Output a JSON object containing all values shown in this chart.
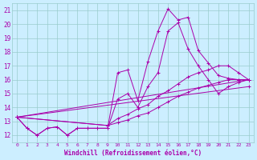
{
  "xlabel": "Windchill (Refroidissement éolien,°C)",
  "bg_color": "#cceeff",
  "line_color": "#aa00aa",
  "grid_color": "#99cccc",
  "xlim": [
    -0.5,
    23.5
  ],
  "ylim": [
    11.5,
    21.5
  ],
  "yticks": [
    12,
    13,
    14,
    15,
    16,
    17,
    18,
    19,
    20,
    21
  ],
  "xticks": [
    0,
    1,
    2,
    3,
    4,
    5,
    6,
    7,
    8,
    9,
    10,
    11,
    12,
    13,
    14,
    15,
    16,
    17,
    18,
    19,
    20,
    21,
    22,
    23
  ],
  "lines": [
    {
      "x": [
        0,
        1,
        2,
        3,
        4,
        5,
        6,
        7,
        8,
        9,
        10,
        11,
        12,
        13,
        14,
        15,
        16,
        17,
        18,
        19,
        20,
        21,
        22,
        23
      ],
      "y": [
        13.3,
        12.5,
        12.0,
        12.5,
        12.6,
        12.0,
        12.5,
        12.5,
        12.5,
        12.5,
        16.5,
        16.7,
        14.5,
        17.3,
        19.5,
        21.1,
        20.3,
        20.5,
        18.1,
        17.2,
        16.3,
        16.1,
        16.0,
        16.0
      ]
    },
    {
      "x": [
        0,
        1,
        2,
        3,
        4,
        5,
        6,
        7,
        8,
        9,
        10,
        11,
        12,
        13,
        14,
        15,
        16,
        17,
        18,
        19,
        20,
        21,
        22,
        23
      ],
      "y": [
        13.3,
        12.5,
        12.0,
        12.5,
        12.6,
        12.0,
        12.5,
        12.5,
        12.5,
        12.5,
        14.6,
        15.0,
        14.0,
        15.5,
        16.5,
        19.5,
        20.1,
        18.2,
        17.0,
        16.0,
        15.0,
        15.5,
        15.8,
        16.0
      ]
    },
    {
      "x": [
        0,
        23
      ],
      "y": [
        13.3,
        16.0
      ]
    },
    {
      "x": [
        0,
        23
      ],
      "y": [
        13.3,
        15.5
      ]
    }
  ],
  "fan_lines": [
    {
      "x": [
        0,
        9,
        10,
        11,
        12,
        13,
        14,
        15,
        16,
        17,
        18,
        19,
        20,
        21,
        22,
        23
      ],
      "y": [
        13.3,
        12.7,
        13.2,
        13.5,
        13.9,
        14.2,
        14.8,
        15.2,
        15.7,
        16.2,
        16.5,
        16.7,
        17.0,
        17.0,
        16.5,
        16.0
      ]
    },
    {
      "x": [
        0,
        9,
        10,
        11,
        12,
        13,
        14,
        15,
        16,
        17,
        18,
        19,
        20,
        21,
        22,
        23
      ],
      "y": [
        13.3,
        12.7,
        12.9,
        13.1,
        13.4,
        13.6,
        14.0,
        14.4,
        14.8,
        15.1,
        15.4,
        15.6,
        15.8,
        16.0,
        16.0,
        16.0
      ]
    }
  ]
}
